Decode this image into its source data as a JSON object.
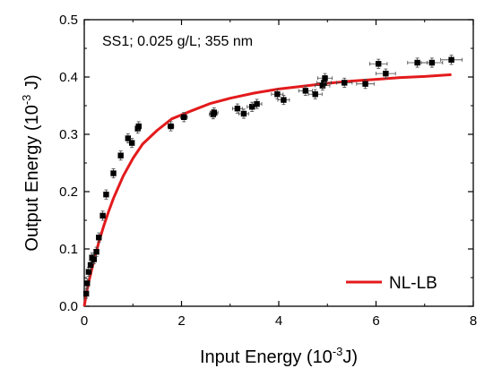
{
  "chart_data": {
    "type": "scatter",
    "annotation": "SS1; 0.025 g/L; 355 nm",
    "xlabel": {
      "text": "Input Energy (10",
      "sup": "-3",
      "suffix": "J)"
    },
    "ylabel": {
      "text": "Output Energy  (10",
      "sup": "-3",
      "suffix": " J)"
    },
    "xlim": [
      0,
      8
    ],
    "ylim": [
      0,
      0.5
    ],
    "xticks": [
      0,
      2,
      4,
      6,
      8
    ],
    "yticks": [
      0.0,
      0.1,
      0.2,
      0.3,
      0.4,
      0.5
    ],
    "xtick_labels": [
      "0",
      "2",
      "4",
      "6",
      "8"
    ],
    "ytick_labels": [
      "0.0",
      "0.1",
      "0.2",
      "0.3",
      "0.4",
      "0.5"
    ],
    "legend": {
      "position": "bottom-right",
      "entries": [
        "NL-LB"
      ]
    },
    "series": [
      {
        "kind": "points",
        "color": "#000000",
        "x": [
          0.04,
          0.06,
          0.09,
          0.13,
          0.16,
          0.2,
          0.25,
          0.3,
          0.38,
          0.45,
          0.6,
          0.75,
          0.9,
          0.98,
          1.1,
          1.12,
          1.78,
          2.05,
          2.65,
          2.67,
          3.15,
          3.28,
          3.45,
          3.55,
          3.97,
          4.1,
          4.55,
          4.75,
          4.9,
          4.93,
          4.95,
          5.35,
          5.78,
          6.05,
          6.2,
          6.85,
          7.15,
          7.55
        ],
        "y": [
          0.022,
          0.04,
          0.06,
          0.072,
          0.085,
          0.082,
          0.095,
          0.12,
          0.158,
          0.195,
          0.232,
          0.263,
          0.293,
          0.285,
          0.31,
          0.314,
          0.314,
          0.33,
          0.335,
          0.338,
          0.345,
          0.336,
          0.348,
          0.353,
          0.37,
          0.36,
          0.376,
          0.37,
          0.385,
          0.39,
          0.398,
          0.39,
          0.388,
          0.423,
          0.406,
          0.425,
          0.425,
          0.43
        ],
        "yerr": 0.008,
        "xerr": [
          0.02,
          0.02,
          0.02,
          0.02,
          0.02,
          0.02,
          0.02,
          0.02,
          0.03,
          0.03,
          0.03,
          0.04,
          0.04,
          0.04,
          0.05,
          0.05,
          0.06,
          0.07,
          0.08,
          0.08,
          0.1,
          0.1,
          0.1,
          0.1,
          0.12,
          0.12,
          0.14,
          0.14,
          0.15,
          0.15,
          0.15,
          0.16,
          0.18,
          0.18,
          0.2,
          0.2,
          0.22,
          0.22
        ]
      },
      {
        "name": "NL-LB",
        "kind": "line",
        "color": "#e31a1c",
        "x": [
          0.0,
          0.05,
          0.1,
          0.2,
          0.3,
          0.4,
          0.5,
          0.6,
          0.8,
          1.0,
          1.2,
          1.5,
          1.8,
          2.2,
          2.6,
          3.0,
          3.5,
          4.0,
          4.5,
          5.0,
          5.5,
          6.0,
          6.5,
          7.0,
          7.55
        ],
        "y": [
          0.0,
          0.025,
          0.045,
          0.08,
          0.112,
          0.14,
          0.165,
          0.188,
          0.227,
          0.258,
          0.283,
          0.307,
          0.327,
          0.341,
          0.354,
          0.363,
          0.372,
          0.379,
          0.384,
          0.389,
          0.393,
          0.396,
          0.399,
          0.401,
          0.404
        ]
      }
    ]
  }
}
